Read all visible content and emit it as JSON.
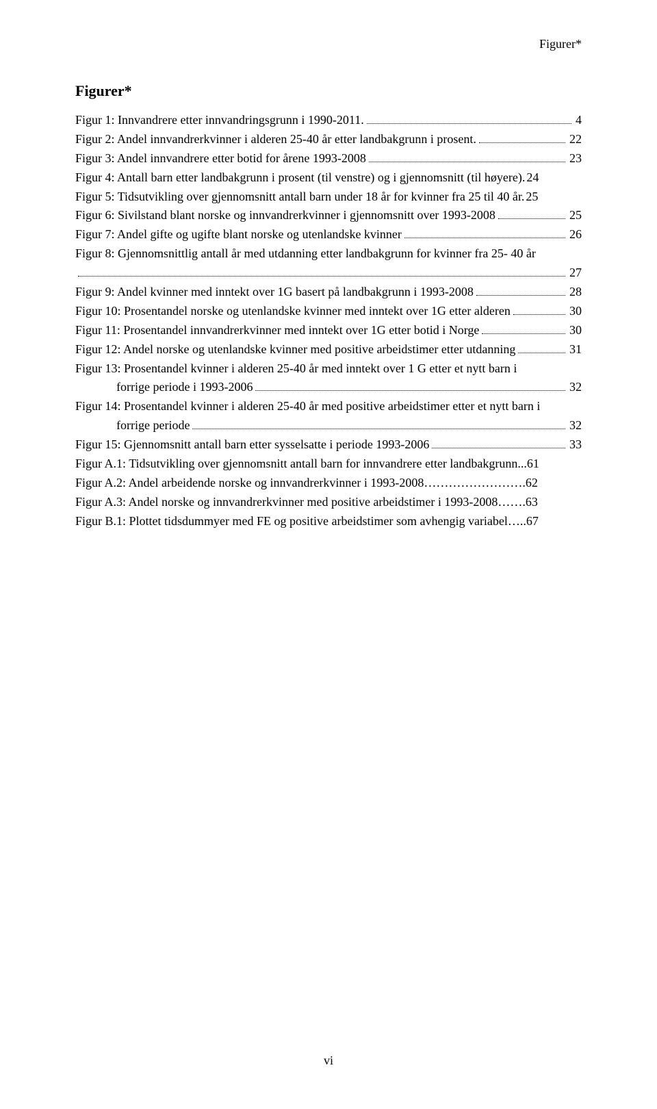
{
  "runningHeader": "Figurer*",
  "title": "Figurer*",
  "pageNumber": "vi",
  "entries": [
    {
      "text": "Figur 1: Innvandrere etter innvandringsgrunn i 1990-2011.",
      "page": "4",
      "leader": true
    },
    {
      "text": "Figur 2: Andel innvandrerkvinner i alderen 25-40 år etter landbakgrunn i prosent.",
      "page": "22",
      "leader": true
    },
    {
      "text": "Figur 3: Andel innvandrere etter botid for årene 1993-2008",
      "page": "23",
      "leader": true
    },
    {
      "text": "Figur 4: Antall barn etter landbakgrunn i prosent (til venstre) og i gjennomsnitt (til høyere).",
      "page": "24",
      "leader": false
    },
    {
      "text": "Figur 5: Tidsutvikling over gjennomsnitt antall barn under 18 år for kvinner fra 25 til 40 år.",
      "page": "25",
      "leader": false
    },
    {
      "text": "Figur 6: Sivilstand blant norske og innvandrerkvinner i gjennomsnitt over 1993-2008",
      "page": "25",
      "leader": true
    },
    {
      "text": "Figur 7: Andel gifte og ugifte blant norske og utenlandske kvinner",
      "page": "26",
      "leader": true
    },
    {
      "text": "Figur 8: Gjennomsnittlig antall år med utdanning etter landbakgrunn for kvinner fra 25- 40 år",
      "page": "",
      "wrap": true
    },
    {
      "text": "",
      "page": "27",
      "leader": true,
      "indent": false,
      "leaderOnly": true
    },
    {
      "text": "Figur 9: Andel kvinner med inntekt over 1G basert på landbakgrunn i 1993-2008",
      "page": "28",
      "leader": true
    },
    {
      "text": "Figur 10: Prosentandel norske og utenlandske kvinner med inntekt over 1G etter alderen",
      "page": "30",
      "leader": true
    },
    {
      "text": "Figur 11: Prosentandel innvandrerkvinner med inntekt over 1G etter botid i Norge",
      "page": "30",
      "leader": true
    },
    {
      "text": "Figur 12: Andel norske og utenlandske kvinner med positive arbeidstimer etter utdanning",
      "page": "31",
      "leader": true
    },
    {
      "text": "Figur 13: Prosentandel kvinner i alderen 25-40 år med inntekt over 1 G etter et nytt barn i",
      "page": "",
      "wrap": true
    },
    {
      "text": "forrige periode i 1993-2006",
      "page": "32",
      "leader": true,
      "indent": true
    },
    {
      "text": "Figur 14: Prosentandel kvinner i alderen 25-40 år med positive arbeidstimer etter et nytt barn i",
      "page": "",
      "wrap": true
    },
    {
      "text": "forrige periode",
      "page": "32",
      "leader": true,
      "indent": true
    },
    {
      "text": "Figur 15: Gjennomsnitt antall barn etter sysselsatte i periode 1993-2006",
      "page": "33",
      "leader": true
    },
    {
      "text": "Figur A.1: Tidsutvikling over gjennomsnitt antall barn for innvandrere etter landbakgrunn...61",
      "page": "",
      "plain": true
    },
    {
      "text": "Figur A.2: Andel arbeidende norske og innvandrerkvinner i 1993-2008…………………….62",
      "page": "",
      "plain": true
    },
    {
      "text": "Figur A.3: Andel norske og innvandrerkvinner med positive arbeidstimer i 1993-2008…….63",
      "page": "",
      "plain": true
    },
    {
      "text": "Figur B.1: Plottet tidsdummyer med FE og positive arbeidstimer som avhengig variabel…..67",
      "page": "",
      "plain": true
    }
  ]
}
